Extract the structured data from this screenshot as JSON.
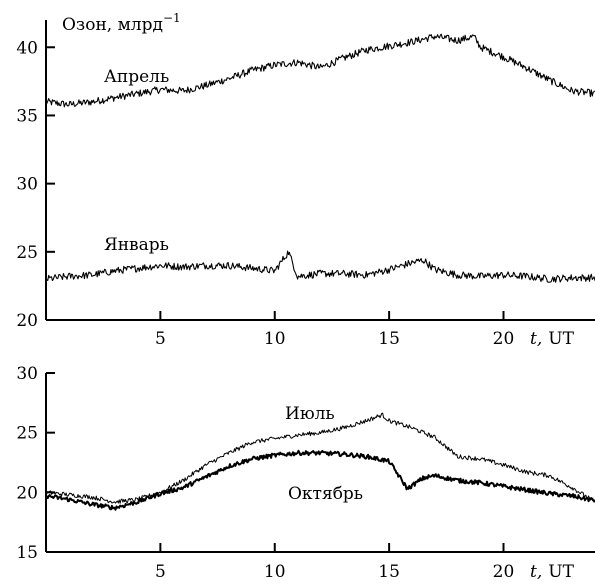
{
  "chart_data": [
    {
      "type": "line",
      "title": "",
      "ylabel": "Озон, млрд",
      "ylabel_superscript": "−1",
      "xlabel_t": "t,",
      "xlabel_unit": "UT",
      "xlim": [
        0,
        24
      ],
      "ylim": [
        20,
        42
      ],
      "xticks": [
        "5",
        "10",
        "15",
        "20"
      ],
      "xtick_values": [
        5,
        10,
        15,
        20
      ],
      "yticks": [
        "20",
        "25",
        "30",
        "35",
        "40"
      ],
      "ytick_values": [
        20,
        25,
        30,
        35,
        40
      ],
      "series": [
        {
          "name": "Апрель",
          "x": [
            0,
            1,
            2,
            3,
            4,
            5,
            6,
            7,
            8,
            9,
            10,
            11,
            12,
            13,
            14,
            15,
            16,
            17,
            18,
            18.7,
            19,
            20,
            21,
            22,
            23,
            24
          ],
          "values": [
            36.0,
            35.8,
            36.0,
            36.3,
            36.6,
            36.9,
            36.8,
            37.2,
            37.7,
            38.3,
            38.7,
            38.9,
            38.5,
            39.2,
            39.8,
            40.1,
            40.4,
            40.8,
            40.5,
            40.8,
            40.0,
            39.3,
            38.5,
            37.6,
            36.8,
            36.6
          ],
          "stroke_width": 1.1
        },
        {
          "name": "Январь",
          "x": [
            0,
            1,
            2,
            3,
            4,
            5,
            6,
            7,
            8,
            9,
            10,
            10.6,
            11,
            12,
            13,
            14,
            15,
            16,
            16.5,
            17,
            18,
            19,
            20,
            21,
            22,
            23,
            24
          ],
          "values": [
            23.0,
            23.2,
            23.3,
            23.6,
            23.8,
            24.0,
            23.9,
            24.0,
            24.0,
            23.8,
            23.6,
            25.0,
            23.2,
            23.4,
            23.4,
            23.3,
            23.7,
            24.2,
            24.4,
            23.7,
            23.3,
            23.2,
            23.3,
            23.2,
            23.0,
            23.1,
            23.1
          ],
          "stroke_width": 1.1
        }
      ]
    },
    {
      "type": "line",
      "title": "",
      "ylabel": "",
      "xlabel_t": "t,",
      "xlabel_unit": "UT",
      "xlim": [
        0,
        24
      ],
      "ylim": [
        15,
        30
      ],
      "xticks": [
        "5",
        "10",
        "15",
        "20"
      ],
      "xtick_values": [
        5,
        10,
        15,
        20
      ],
      "yticks": [
        "15",
        "20",
        "25",
        "30"
      ],
      "ytick_values": [
        15,
        20,
        25,
        30
      ],
      "series": [
        {
          "name": "Июль",
          "x": [
            0,
            1,
            2,
            3,
            4,
            5,
            6,
            7,
            8,
            9,
            10,
            11,
            12,
            13,
            14,
            14.7,
            15,
            16,
            17,
            18,
            19,
            20,
            21,
            22,
            23,
            24
          ],
          "values": [
            20.0,
            19.8,
            19.6,
            19.2,
            19.4,
            20.0,
            21.0,
            22.3,
            23.3,
            24.2,
            24.5,
            24.8,
            25.0,
            25.4,
            26.0,
            26.5,
            26.0,
            25.4,
            24.6,
            23.0,
            22.8,
            22.3,
            21.7,
            21.4,
            20.4,
            19.2
          ],
          "stroke_width": 1.0
        },
        {
          "name": "Октябрь",
          "x": [
            0,
            1,
            2,
            3,
            4,
            5,
            6,
            7,
            8,
            9,
            10,
            11,
            12,
            13,
            14,
            15,
            15.8,
            16.5,
            17,
            18,
            19,
            20,
            21,
            22,
            23,
            24
          ],
          "values": [
            19.7,
            19.4,
            19.0,
            18.7,
            19.2,
            19.9,
            20.4,
            21.3,
            22.2,
            22.8,
            23.1,
            23.3,
            23.3,
            23.2,
            23.0,
            22.6,
            20.3,
            21.2,
            21.4,
            21.0,
            20.8,
            20.5,
            20.2,
            19.9,
            19.7,
            19.3
          ],
          "stroke_width": 2.0
        }
      ]
    }
  ]
}
